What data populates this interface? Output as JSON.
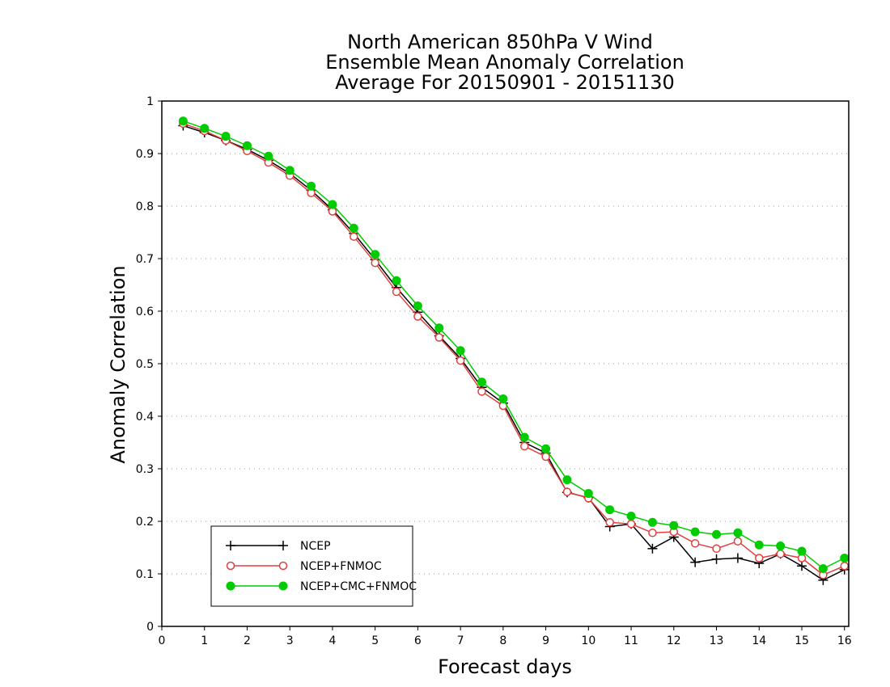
{
  "chart_data": {
    "type": "line",
    "title_lines": [
      "North American 850hPa V Wind",
      "Ensemble Mean Anomaly Correlation",
      "Average For 20150901 - 20151130"
    ],
    "xlabel": "Forecast days",
    "ylabel": "Anomaly Correlation",
    "xlim": [
      0,
      16.1
    ],
    "ylim": [
      0,
      1
    ],
    "x_ticks": [
      0,
      1,
      2,
      3,
      4,
      5,
      6,
      7,
      8,
      9,
      10,
      11,
      12,
      13,
      14,
      15,
      16
    ],
    "x_tick_labels": [
      "0",
      "1",
      "2",
      "3",
      "4",
      "5",
      "6",
      "7",
      "8",
      "9",
      "10",
      "11",
      "12",
      "13",
      "14",
      "15",
      "16"
    ],
    "y_ticks": [
      0,
      0.1,
      0.2,
      0.3,
      0.4,
      0.5,
      0.6,
      0.7,
      0.8,
      0.9,
      1
    ],
    "y_tick_labels": [
      "0",
      "0.1",
      "0.2",
      "0.3",
      "0.4",
      "0.5",
      "0.6",
      "0.7",
      "0.8",
      "0.9",
      "1"
    ],
    "grid": true,
    "legend_position": "bottom-left",
    "x": [
      0.5,
      1.0,
      1.5,
      2.0,
      2.5,
      3.0,
      3.5,
      4.0,
      4.5,
      5.0,
      5.5,
      6.0,
      6.5,
      7.0,
      7.5,
      8.0,
      8.5,
      9.0,
      9.5,
      10.0,
      10.5,
      11.0,
      11.5,
      12.0,
      12.5,
      13.0,
      13.5,
      14.0,
      14.5,
      15.0,
      15.5,
      16.0
    ],
    "series": [
      {
        "name": "NCEP",
        "color": "#000000",
        "marker": "plus",
        "values": [
          0.953,
          0.94,
          0.925,
          0.908,
          0.887,
          0.862,
          0.83,
          0.793,
          0.748,
          0.698,
          0.645,
          0.598,
          0.553,
          0.51,
          0.455,
          0.425,
          0.35,
          0.33,
          0.255,
          0.245,
          0.19,
          0.195,
          0.148,
          0.17,
          0.122,
          0.128,
          0.13,
          0.12,
          0.138,
          0.115,
          0.088,
          0.108
        ]
      },
      {
        "name": "NCEP+FNMOC",
        "color": "#e04040",
        "marker": "open-circle",
        "values": [
          0.957,
          0.943,
          0.925,
          0.905,
          0.883,
          0.858,
          0.825,
          0.79,
          0.742,
          0.692,
          0.637,
          0.59,
          0.55,
          0.506,
          0.447,
          0.42,
          0.343,
          0.323,
          0.256,
          0.244,
          0.198,
          0.195,
          0.178,
          0.18,
          0.158,
          0.148,
          0.162,
          0.13,
          0.138,
          0.13,
          0.098,
          0.115
        ]
      },
      {
        "name": "NCEP+CMC+FNMOC",
        "color": "#00cc00",
        "marker": "filled-circle",
        "values": [
          0.962,
          0.948,
          0.933,
          0.915,
          0.895,
          0.868,
          0.838,
          0.803,
          0.758,
          0.708,
          0.658,
          0.61,
          0.568,
          0.525,
          0.465,
          0.433,
          0.36,
          0.338,
          0.279,
          0.253,
          0.222,
          0.21,
          0.198,
          0.192,
          0.18,
          0.175,
          0.178,
          0.155,
          0.153,
          0.143,
          0.11,
          0.13
        ]
      }
    ]
  }
}
